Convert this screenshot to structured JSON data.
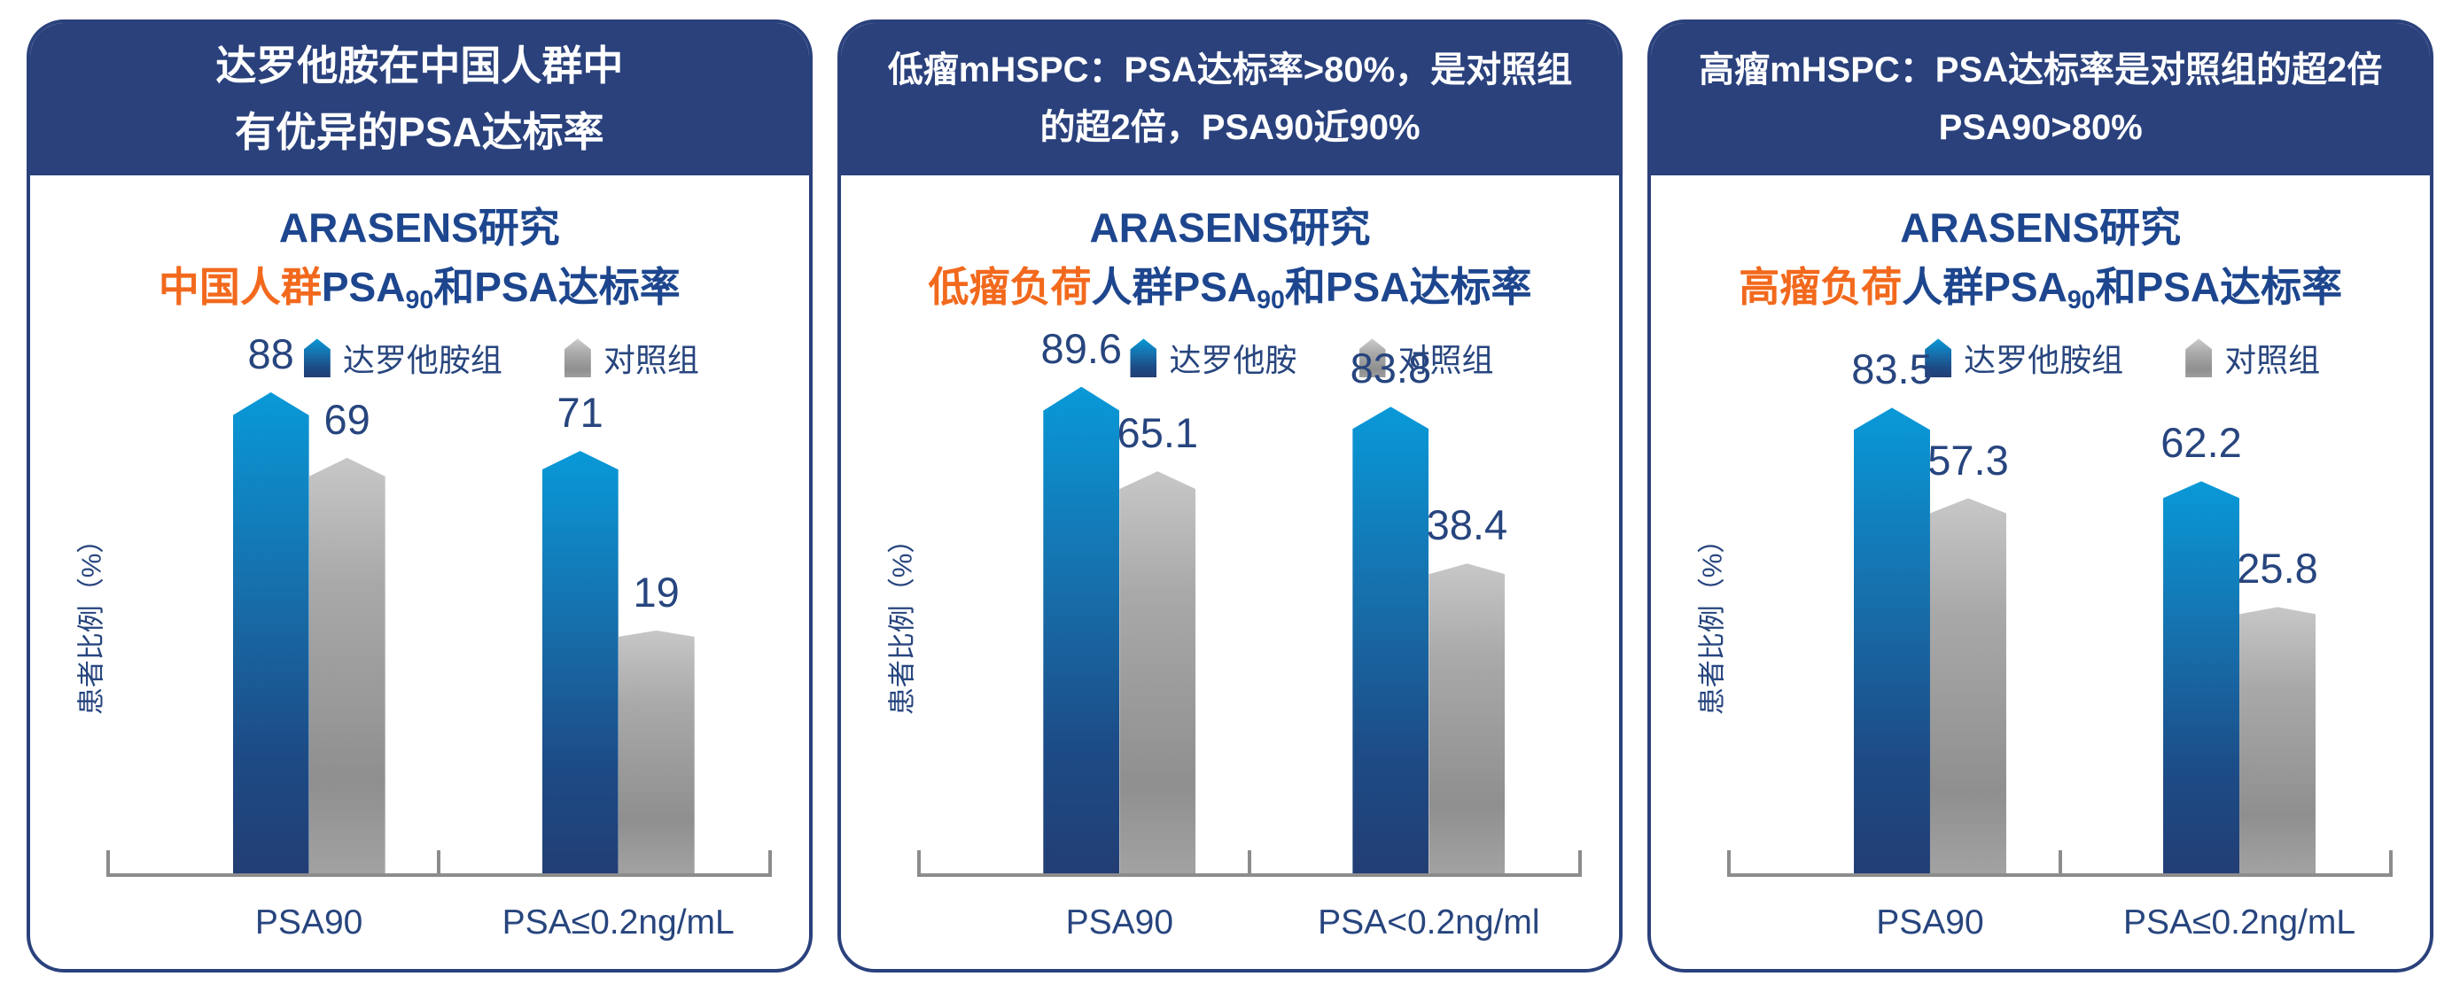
{
  "colors": {
    "navy_header": "#2A417C",
    "navy_text": "#27457E",
    "title_navy": "#1D468E",
    "orange_highlight": "#F2691D",
    "bar_blue_top": "#0999D8",
    "bar_blue_bottom": "#223E74",
    "bar_gray_top": "#C7C7C7",
    "bar_gray_bottom": "#A2A2A2",
    "axis_gray": "#8C8C8C"
  },
  "panels": [
    {
      "header_lines": [
        "达罗他胺在中国人群中",
        "有优异的PSA达标率"
      ],
      "study_title": "ARASENS研究",
      "subtitle_highlight": "中国人群",
      "subtitle_pre": "PSA",
      "subtitle_sub": "90",
      "subtitle_post": "和PSA达标率"
    },
    {
      "header_lines": [
        "低瘤mHSPC：PSA达标率>80%，是对照组",
        "的超2倍，PSA90近90%"
      ],
      "study_title": "ARASENS研究",
      "subtitle_highlight": "低瘤负荷",
      "subtitle_pre": "人群PSA",
      "subtitle_sub": "90",
      "subtitle_post": "和PSA达标率"
    },
    {
      "header_lines": [
        "高瘤mHSPC：PSA达标率是对照组的超2倍",
        "PSA90>80%"
      ],
      "study_title": "ARASENS研究",
      "subtitle_highlight": "高瘤负荷",
      "subtitle_pre": "人群PSA",
      "subtitle_sub": "90",
      "subtitle_post": "和PSA达标率"
    }
  ],
  "chart_data": [
    {
      "type": "bar",
      "categories": [
        "PSA90",
        "PSA≤0.2ng/mL"
      ],
      "series": [
        {
          "name": "达罗他胺组",
          "values": [
            88,
            71
          ]
        },
        {
          "name": "对照组",
          "values": [
            69,
            19
          ]
        }
      ],
      "ylabel": "患者比例（%）",
      "ylim": [
        0,
        100
      ],
      "grid": false,
      "legend_position": "top"
    },
    {
      "type": "bar",
      "categories": [
        "PSA90",
        "PSA<0.2ng/ml"
      ],
      "series": [
        {
          "name": "达罗他胺",
          "values": [
            89.6,
            83.8
          ]
        },
        {
          "name": "对照组",
          "values": [
            65.1,
            38.4
          ]
        }
      ],
      "ylabel": "患者比例（%）",
      "ylim": [
        0,
        100
      ],
      "grid": false,
      "legend_position": "top"
    },
    {
      "type": "bar",
      "categories": [
        "PSA90",
        "PSA≤0.2ng/mL"
      ],
      "series": [
        {
          "name": "达罗他胺组",
          "values": [
            83.5,
            62.2
          ]
        },
        {
          "name": "对照组",
          "values": [
            57.3,
            25.8
          ]
        }
      ],
      "ylabel": "患者比例（%）",
      "ylim": [
        0,
        100
      ],
      "grid": false,
      "legend_position": "top"
    }
  ]
}
